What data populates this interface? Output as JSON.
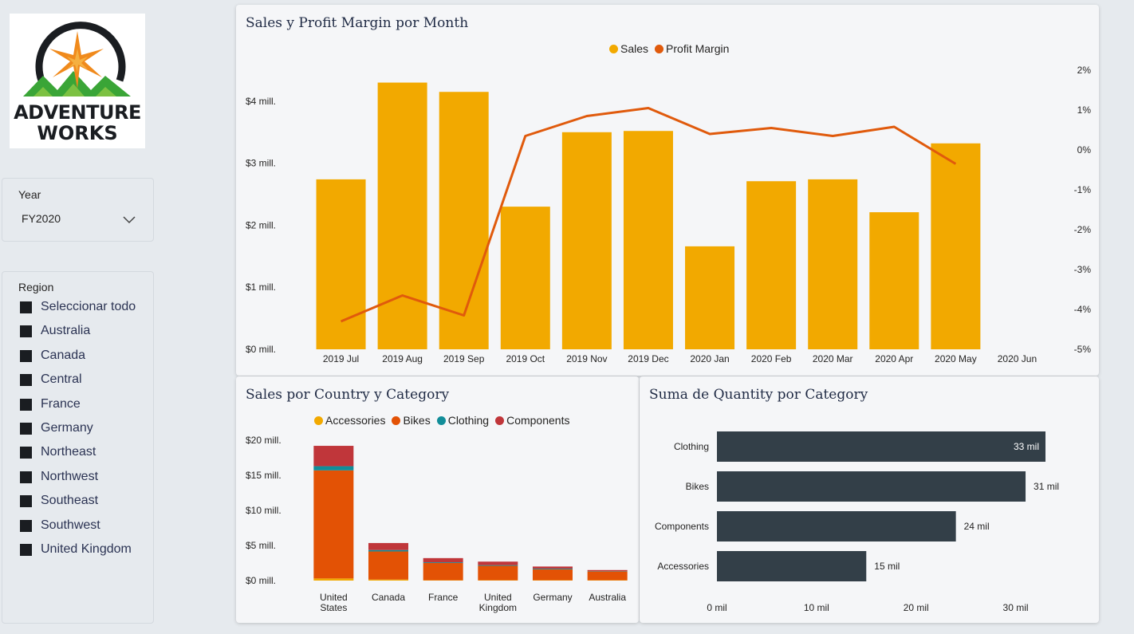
{
  "logo": {
    "line1": "ADVENTURE",
    "line2": "WORKS"
  },
  "year_slicer": {
    "label": "Year",
    "value": "FY2020"
  },
  "region_slicer": {
    "label": "Region",
    "items": [
      "Seleccionar todo",
      "Australia",
      "Canada",
      "Central",
      "France",
      "Germany",
      "Northeast",
      "Northwest",
      "Southeast",
      "Southwest",
      "United Kingdom"
    ]
  },
  "colors": {
    "sales": "#f2a900",
    "profit": "#e05a0c",
    "accessories": "#f2a900",
    "bikes": "#e35205",
    "clothing": "#118d99",
    "components": "#c0363a",
    "quantity_bar": "#333f48"
  },
  "sales_chart": {
    "title": "Sales y Profit Margin por Month",
    "legend": [
      "Sales",
      "Profit Margin"
    ],
    "y_ticks": [
      "$0 mill.",
      "$1 mill.",
      "$2 mill.",
      "$3 mill.",
      "$4 mill."
    ],
    "y2_ticks": [
      "2%",
      "1%",
      "0%",
      "-1%",
      "-2%",
      "-3%",
      "-4%",
      "-5%"
    ]
  },
  "country_chart": {
    "title": "Sales por Country y Category",
    "legend": [
      "Accessories",
      "Bikes",
      "Clothing",
      "Components"
    ],
    "y_ticks": [
      "$0 mill.",
      "$5 mill.",
      "$10 mill.",
      "$15 mill.",
      "$20 mill."
    ]
  },
  "quantity_chart": {
    "title": "Suma de Quantity por Category",
    "x_ticks": [
      "0 mil",
      "10 mil",
      "20 mil",
      "30 mil"
    ]
  },
  "chart_data": [
    {
      "type": "bar",
      "title": "Sales y Profit Margin por Month",
      "categories": [
        "2019 Jul",
        "2019 Aug",
        "2019 Sep",
        "2019 Oct",
        "2019 Nov",
        "2019 Dec",
        "2020 Jan",
        "2020 Feb",
        "2020 Mar",
        "2020 Apr",
        "2020 May",
        "2020 Jun"
      ],
      "series": [
        {
          "name": "Sales",
          "type": "bar",
          "values": [
            2.74,
            4.3,
            4.15,
            2.3,
            3.5,
            3.52,
            1.66,
            2.71,
            2.74,
            2.21,
            3.32,
            null
          ]
        },
        {
          "name": "Profit Margin",
          "type": "line",
          "axis": "secondary",
          "values": [
            -4.3,
            -3.65,
            -4.15,
            0.35,
            0.85,
            1.05,
            0.4,
            0.55,
            0.35,
            0.58,
            -0.35,
            null
          ]
        }
      ],
      "ylim": [
        0,
        4.5
      ],
      "y2lim": [
        -5,
        2
      ],
      "legend": "top-center"
    },
    {
      "type": "bar",
      "stacked": true,
      "title": "Sales por Country y Category",
      "categories": [
        "United States",
        "Canada",
        "France",
        "United Kingdom",
        "Germany",
        "Australia"
      ],
      "series": [
        {
          "name": "Accessories",
          "values": [
            0.3,
            0.15,
            0.05,
            0.05,
            0.05,
            0.05
          ]
        },
        {
          "name": "Bikes",
          "values": [
            15.4,
            4.0,
            2.45,
            2.05,
            1.55,
            1.25
          ]
        },
        {
          "name": "Clothing",
          "values": [
            0.6,
            0.2,
            0.1,
            0.1,
            0.1,
            0.05
          ]
        },
        {
          "name": "Components",
          "values": [
            2.9,
            1.0,
            0.6,
            0.5,
            0.3,
            0.15
          ]
        }
      ],
      "ylim": [
        0,
        20
      ],
      "legend": "top-center"
    },
    {
      "type": "bar",
      "orientation": "horizontal",
      "title": "Suma de Quantity por Category",
      "categories": [
        "Clothing",
        "Bikes",
        "Components",
        "Accessories"
      ],
      "values": [
        33,
        31,
        24,
        15
      ],
      "data_labels": [
        "33 mil",
        "31 mil",
        "24 mil",
        "15 mil"
      ],
      "xlim": [
        0,
        33
      ]
    }
  ]
}
